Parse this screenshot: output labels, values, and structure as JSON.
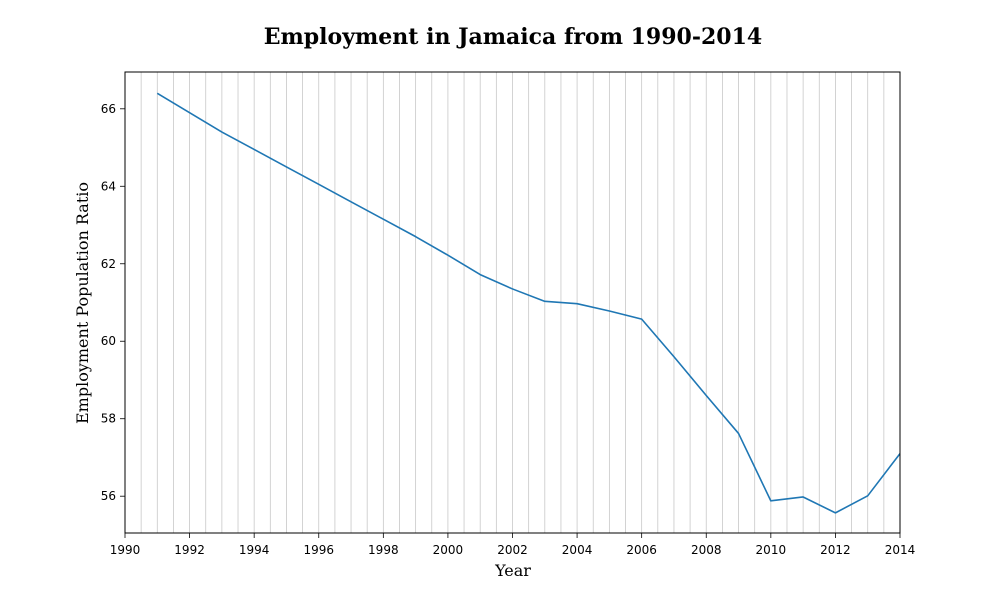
{
  "chart_data": {
    "type": "line",
    "title": "Employment in Jamaica from 1990-2014",
    "xlabel": "Year",
    "ylabel": "Employment Population Ratio",
    "xlim": [
      1990,
      2014
    ],
    "ylim": [
      55.05,
      66.95
    ],
    "xticks": [
      1990,
      1992,
      1994,
      1996,
      1998,
      2000,
      2002,
      2004,
      2006,
      2008,
      2010,
      2012,
      2014
    ],
    "yticks": [
      56,
      58,
      60,
      62,
      64,
      66
    ],
    "grid": "vertical, every 0.5 year",
    "series": [
      {
        "color": "#1f77b4",
        "x": [
          1991,
          1992,
          1993,
          1994,
          1995,
          1996,
          1997,
          1998,
          1999,
          2000,
          2001,
          2002,
          2003,
          2004,
          2005,
          2006,
          2007,
          2008,
          2009,
          2010,
          2011,
          2012,
          2013,
          2014
        ],
        "y": [
          66.4,
          65.9,
          65.4,
          64.95,
          64.5,
          64.05,
          63.6,
          63.15,
          62.7,
          62.22,
          61.72,
          61.35,
          61.03,
          60.97,
          60.78,
          60.57,
          59.6,
          58.6,
          57.62,
          55.88,
          55.98,
          55.57,
          56.01,
          57.1
        ]
      }
    ]
  }
}
